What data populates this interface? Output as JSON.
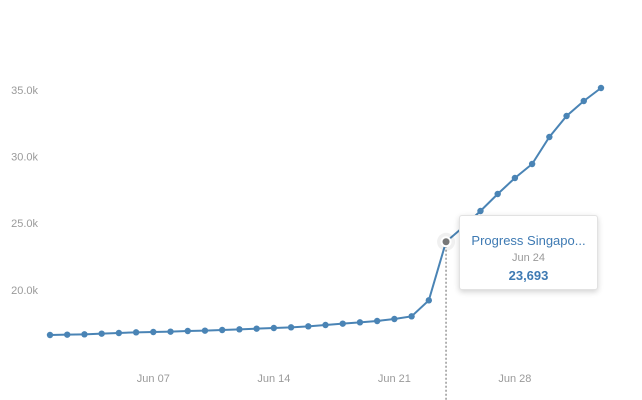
{
  "chart_data": {
    "type": "line",
    "x": [
      "Jun 01",
      "Jun 02",
      "Jun 03",
      "Jun 04",
      "Jun 05",
      "Jun 06",
      "Jun 07",
      "Jun 08",
      "Jun 09",
      "Jun 10",
      "Jun 11",
      "Jun 12",
      "Jun 13",
      "Jun 14",
      "Jun 15",
      "Jun 16",
      "Jun 17",
      "Jun 18",
      "Jun 19",
      "Jun 20",
      "Jun 21",
      "Jun 22",
      "Jun 23",
      "Jun 24",
      "Jun 25",
      "Jun 26",
      "Jun 27",
      "Jun 28",
      "Jun 29",
      "Jun 30",
      "Jul 01",
      "Jul 02",
      "Jul 03"
    ],
    "xticks": [
      "Jun 07",
      "Jun 14",
      "Jun 21",
      "Jun 28"
    ],
    "series": [
      {
        "name": "Progress Singapo...",
        "color": "#4a84b5",
        "values": [
          16700,
          16725,
          16750,
          16800,
          16850,
          16900,
          16925,
          16950,
          17000,
          17025,
          17075,
          17125,
          17175,
          17225,
          17275,
          17350,
          17450,
          17550,
          17650,
          17750,
          17900,
          18100,
          19300,
          23693,
          24800,
          26000,
          27275,
          28475,
          29525,
          31550,
          33125,
          34250,
          35225
        ]
      }
    ],
    "ylim": [
      11825,
      41825
    ],
    "yticks": [
      {
        "value": 20000,
        "label": "20.0k"
      },
      {
        "value": 25000,
        "label": "25.0k"
      },
      {
        "value": 30000,
        "label": "30.0k"
      },
      {
        "value": 35000,
        "label": "35.0k"
      }
    ],
    "tooltip": {
      "title": "Progress Singapo...",
      "date": "Jun 24",
      "value": "23,693"
    }
  }
}
